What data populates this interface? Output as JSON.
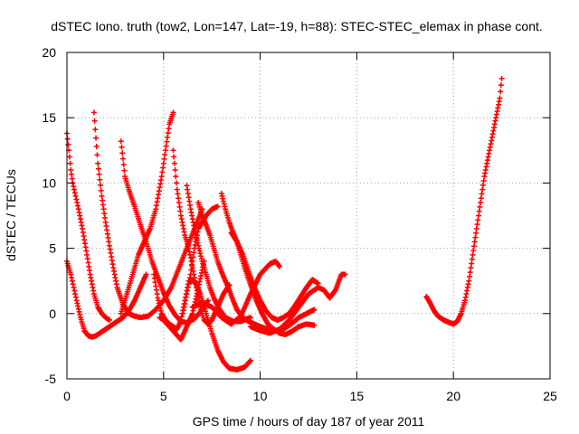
{
  "chart_data": {
    "type": "scatter",
    "title": "dSTEC Iono. truth (tow2, Lon=147, Lat=-19, h=88): STEC-STEC_elemax in phase cont.",
    "xlabel": "GPS time / hours of day 187 of year 2011",
    "ylabel": "dSTEC  / TECUs",
    "xlim": [
      0,
      25
    ],
    "ylim": [
      -5,
      20
    ],
    "xticks": [
      0,
      5,
      10,
      15,
      20,
      25
    ],
    "yticks": [
      -5,
      0,
      5,
      10,
      15,
      20
    ],
    "grid": true,
    "marker": "+",
    "color": "#ff0000",
    "series": [
      {
        "x": [
          0,
          0.1,
          0.2,
          0.3,
          0.45,
          0.6,
          0.8,
          1.0,
          1.2,
          1.4,
          1.6,
          1.8,
          2.0,
          2.2
        ],
        "y": [
          13.8,
          12.5,
          11.0,
          10.0,
          9.0,
          8.0,
          6.5,
          4.8,
          3.0,
          1.5,
          0.5,
          0.0,
          -0.3,
          -0.5
        ]
      },
      {
        "x": [
          0,
          0.1,
          0.2,
          0.35,
          0.5,
          0.7,
          0.9,
          1.1,
          1.3,
          1.5,
          1.7,
          2.0,
          2.3,
          2.6,
          2.9,
          3.2,
          3.5,
          3.8,
          4.1
        ],
        "y": [
          4.0,
          3.5,
          3.0,
          2.0,
          1.0,
          -0.3,
          -1.3,
          -1.7,
          -1.8,
          -1.7,
          -1.5,
          -1.2,
          -0.9,
          -0.6,
          -0.3,
          0.2,
          1.0,
          2.0,
          3.0
        ]
      },
      {
        "x": [
          1.4,
          1.6,
          1.8,
          2.0,
          2.2,
          2.4,
          2.6,
          2.9,
          3.2,
          3.5,
          3.8,
          4.2,
          4.6,
          5.0,
          5.4,
          5.8,
          6.2,
          6.6,
          7.0
        ],
        "y": [
          15.4,
          11.5,
          9.0,
          7.0,
          5.2,
          3.5,
          2.0,
          0.7,
          0.0,
          -0.2,
          -0.3,
          -0.2,
          0.3,
          1.0,
          2.0,
          3.5,
          5.0,
          6.5,
          8.0
        ]
      },
      {
        "x": [
          2.8,
          3.0,
          3.2,
          3.5,
          3.8,
          4.1,
          4.4,
          4.7,
          5.0,
          5.3,
          5.6,
          5.9,
          6.2,
          6.6,
          7.0,
          7.3
        ],
        "y": [
          13.2,
          10.5,
          9.5,
          8.2,
          6.8,
          5.5,
          4.0,
          2.8,
          1.6,
          0.6,
          -0.1,
          -0.6,
          -0.7,
          -0.4,
          0.3,
          1.0
        ]
      },
      {
        "x": [
          2.8,
          3.1,
          3.4,
          3.7,
          4.0,
          4.3,
          4.6,
          4.9,
          5.1,
          5.3,
          5.5
        ],
        "y": [
          0.0,
          1.5,
          3.0,
          4.5,
          5.5,
          6.5,
          8.0,
          10.5,
          12.5,
          14.5,
          15.4
        ]
      },
      {
        "x": [
          4.5,
          4.7,
          4.9,
          5.1,
          5.3,
          5.5,
          5.7,
          5.9,
          6.1,
          6.3,
          6.6,
          6.9,
          7.2,
          7.5,
          7.8,
          8.1,
          8.4,
          8.8,
          9.2,
          9.5
        ],
        "y": [
          3.0,
          1.2,
          0.0,
          -0.5,
          -0.8,
          -1.0,
          -1.2,
          -0.5,
          1.0,
          2.5,
          2.5,
          1.5,
          0.0,
          -1.5,
          -2.8,
          -3.7,
          -4.2,
          -4.3,
          -4.1,
          -3.6
        ]
      },
      {
        "x": [
          5.5,
          5.7,
          5.9,
          6.1,
          6.3,
          6.5,
          6.7,
          6.9,
          7.1,
          7.3,
          7.5,
          7.8,
          8.1,
          8.4
        ],
        "y": [
          12.5,
          9.5,
          7.5,
          6.0,
          5.0,
          3.5,
          2.0,
          0.5,
          -0.5,
          -0.8,
          -0.5,
          0.5,
          1.5,
          2.2
        ]
      },
      {
        "x": [
          4.8,
          5.0,
          5.3,
          5.6,
          5.9,
          6.2,
          6.5,
          6.8,
          7.1
        ],
        "y": [
          -0.3,
          -0.5,
          -1.0,
          -1.5,
          -2.0,
          -1.0,
          0.0,
          2.0,
          4.0
        ]
      },
      {
        "x": [
          6.2,
          6.4,
          6.6,
          6.8,
          7.0,
          7.2,
          7.4,
          7.6,
          7.9,
          8.2,
          8.6,
          9.0,
          9.5
        ],
        "y": [
          9.8,
          8.0,
          6.5,
          5.2,
          4.0,
          3.0,
          2.0,
          1.2,
          0.3,
          -0.3,
          -0.6,
          -0.6,
          -0.3
        ]
      },
      {
        "x": [
          6.8,
          7.0,
          7.2,
          7.4,
          7.6,
          7.8,
          8.0,
          8.2,
          8.4,
          8.6,
          8.8,
          9.1,
          9.4,
          9.7,
          10.0,
          10.4,
          10.8,
          11.2,
          11.6,
          12.0,
          12.4,
          12.8
        ],
        "y": [
          8.5,
          7.5,
          6.8,
          6.0,
          5.0,
          4.0,
          3.2,
          2.5,
          1.8,
          1.0,
          0.3,
          -0.3,
          -0.6,
          -0.8,
          -1.0,
          -1.2,
          -1.3,
          -1.2,
          -0.8,
          -0.3,
          0.0,
          0.3
        ]
      },
      {
        "x": [
          6.0,
          6.2,
          6.4,
          6.6,
          6.8,
          7.0,
          7.2,
          7.5,
          7.8
        ],
        "y": [
          0.0,
          1.5,
          3.0,
          5.0,
          6.5,
          7.0,
          7.5,
          8.0,
          8.2
        ]
      },
      {
        "x": [
          8.0,
          8.2,
          8.4,
          8.6,
          8.8,
          9.0,
          9.2,
          9.5,
          9.8,
          10.1,
          10.4,
          10.7,
          11.0,
          11.3,
          11.6,
          12.0,
          12.4,
          12.8
        ],
        "y": [
          9.2,
          8.0,
          7.0,
          6.2,
          5.5,
          4.5,
          3.5,
          2.2,
          1.0,
          0.0,
          -0.8,
          -1.2,
          -1.5,
          -1.6,
          -1.4,
          -1.0,
          -0.8,
          -0.9
        ]
      },
      {
        "x": [
          8.5,
          8.8,
          9.1,
          9.4,
          9.7,
          10.0,
          10.3,
          10.6,
          10.9,
          11.2,
          11.5,
          11.8,
          12.1,
          12.4,
          12.7,
          13.0
        ],
        "y": [
          6.2,
          5.5,
          4.5,
          3.2,
          2.0,
          1.0,
          0.2,
          -0.3,
          -0.5,
          -0.3,
          0.0,
          0.6,
          1.3,
          2.0,
          2.6,
          2.3
        ]
      },
      {
        "x": [
          6.5,
          7.0,
          7.5,
          8.0,
          8.5,
          9.0,
          9.5,
          10.0,
          10.5,
          10.8,
          11.0
        ],
        "y": [
          0.5,
          0.8,
          0.5,
          -0.3,
          -0.8,
          -0.2,
          1.5,
          3.0,
          3.8,
          4.0,
          3.6
        ]
      },
      {
        "x": [
          9.5,
          10.0,
          10.5,
          11.0,
          11.5,
          12.0,
          12.5,
          13.0,
          13.3,
          13.6,
          13.9,
          14.2,
          14.4
        ],
        "y": [
          -1.0,
          -1.3,
          -1.5,
          -1.2,
          -0.5,
          0.5,
          1.5,
          2.0,
          1.8,
          1.2,
          1.8,
          3.0,
          3.0
        ]
      },
      {
        "x": [
          18.6,
          18.8,
          19.0,
          19.2,
          19.5,
          19.8,
          20.0,
          20.2,
          20.4,
          20.6,
          20.8,
          21.0,
          21.2,
          21.4,
          21.6,
          21.8,
          22.0,
          22.2,
          22.4,
          22.5
        ],
        "y": [
          1.3,
          0.8,
          0.2,
          -0.2,
          -0.5,
          -0.7,
          -0.8,
          -0.6,
          0.0,
          1.0,
          2.5,
          4.5,
          6.5,
          8.5,
          10.5,
          12.0,
          13.5,
          15.0,
          16.5,
          18.0
        ]
      }
    ]
  }
}
